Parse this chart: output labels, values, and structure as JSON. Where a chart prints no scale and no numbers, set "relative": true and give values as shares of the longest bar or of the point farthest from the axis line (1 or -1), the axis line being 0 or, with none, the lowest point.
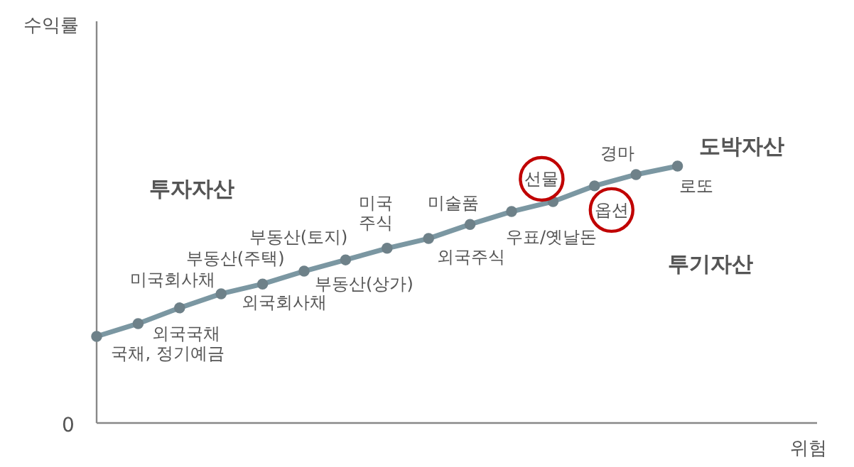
{
  "chart_data": {
    "type": "line",
    "relative": true,
    "marker": "circle",
    "line_style": "solid",
    "categories": [
      null,
      null,
      null,
      null,
      null,
      null,
      null,
      null,
      null,
      null,
      null,
      null,
      null,
      null,
      null
    ],
    "series": [
      {
        "color": "#7b97a2",
        "values": [
          0.337,
          0.387,
          0.448,
          0.503,
          0.541,
          0.591,
          0.635,
          0.68,
          0.718,
          0.773,
          0.823,
          0.862,
          0.923,
          0.967,
          1
        ]
      }
    ],
    "annotations": [
      "국채, 정기예금",
      "외국국채",
      "미국회사채",
      "부동산(주택)",
      "외국회사채",
      "부동산(토지)",
      "부동산(상가)",
      "미국\n주식",
      "외국주식",
      "미술품",
      "우표/옛날돈",
      "선물",
      "옵션",
      "경마",
      "로또",
      "0",
      "투자자산",
      "도박자산",
      "투기자산",
      "수익률",
      "위험"
    ]
  }
}
